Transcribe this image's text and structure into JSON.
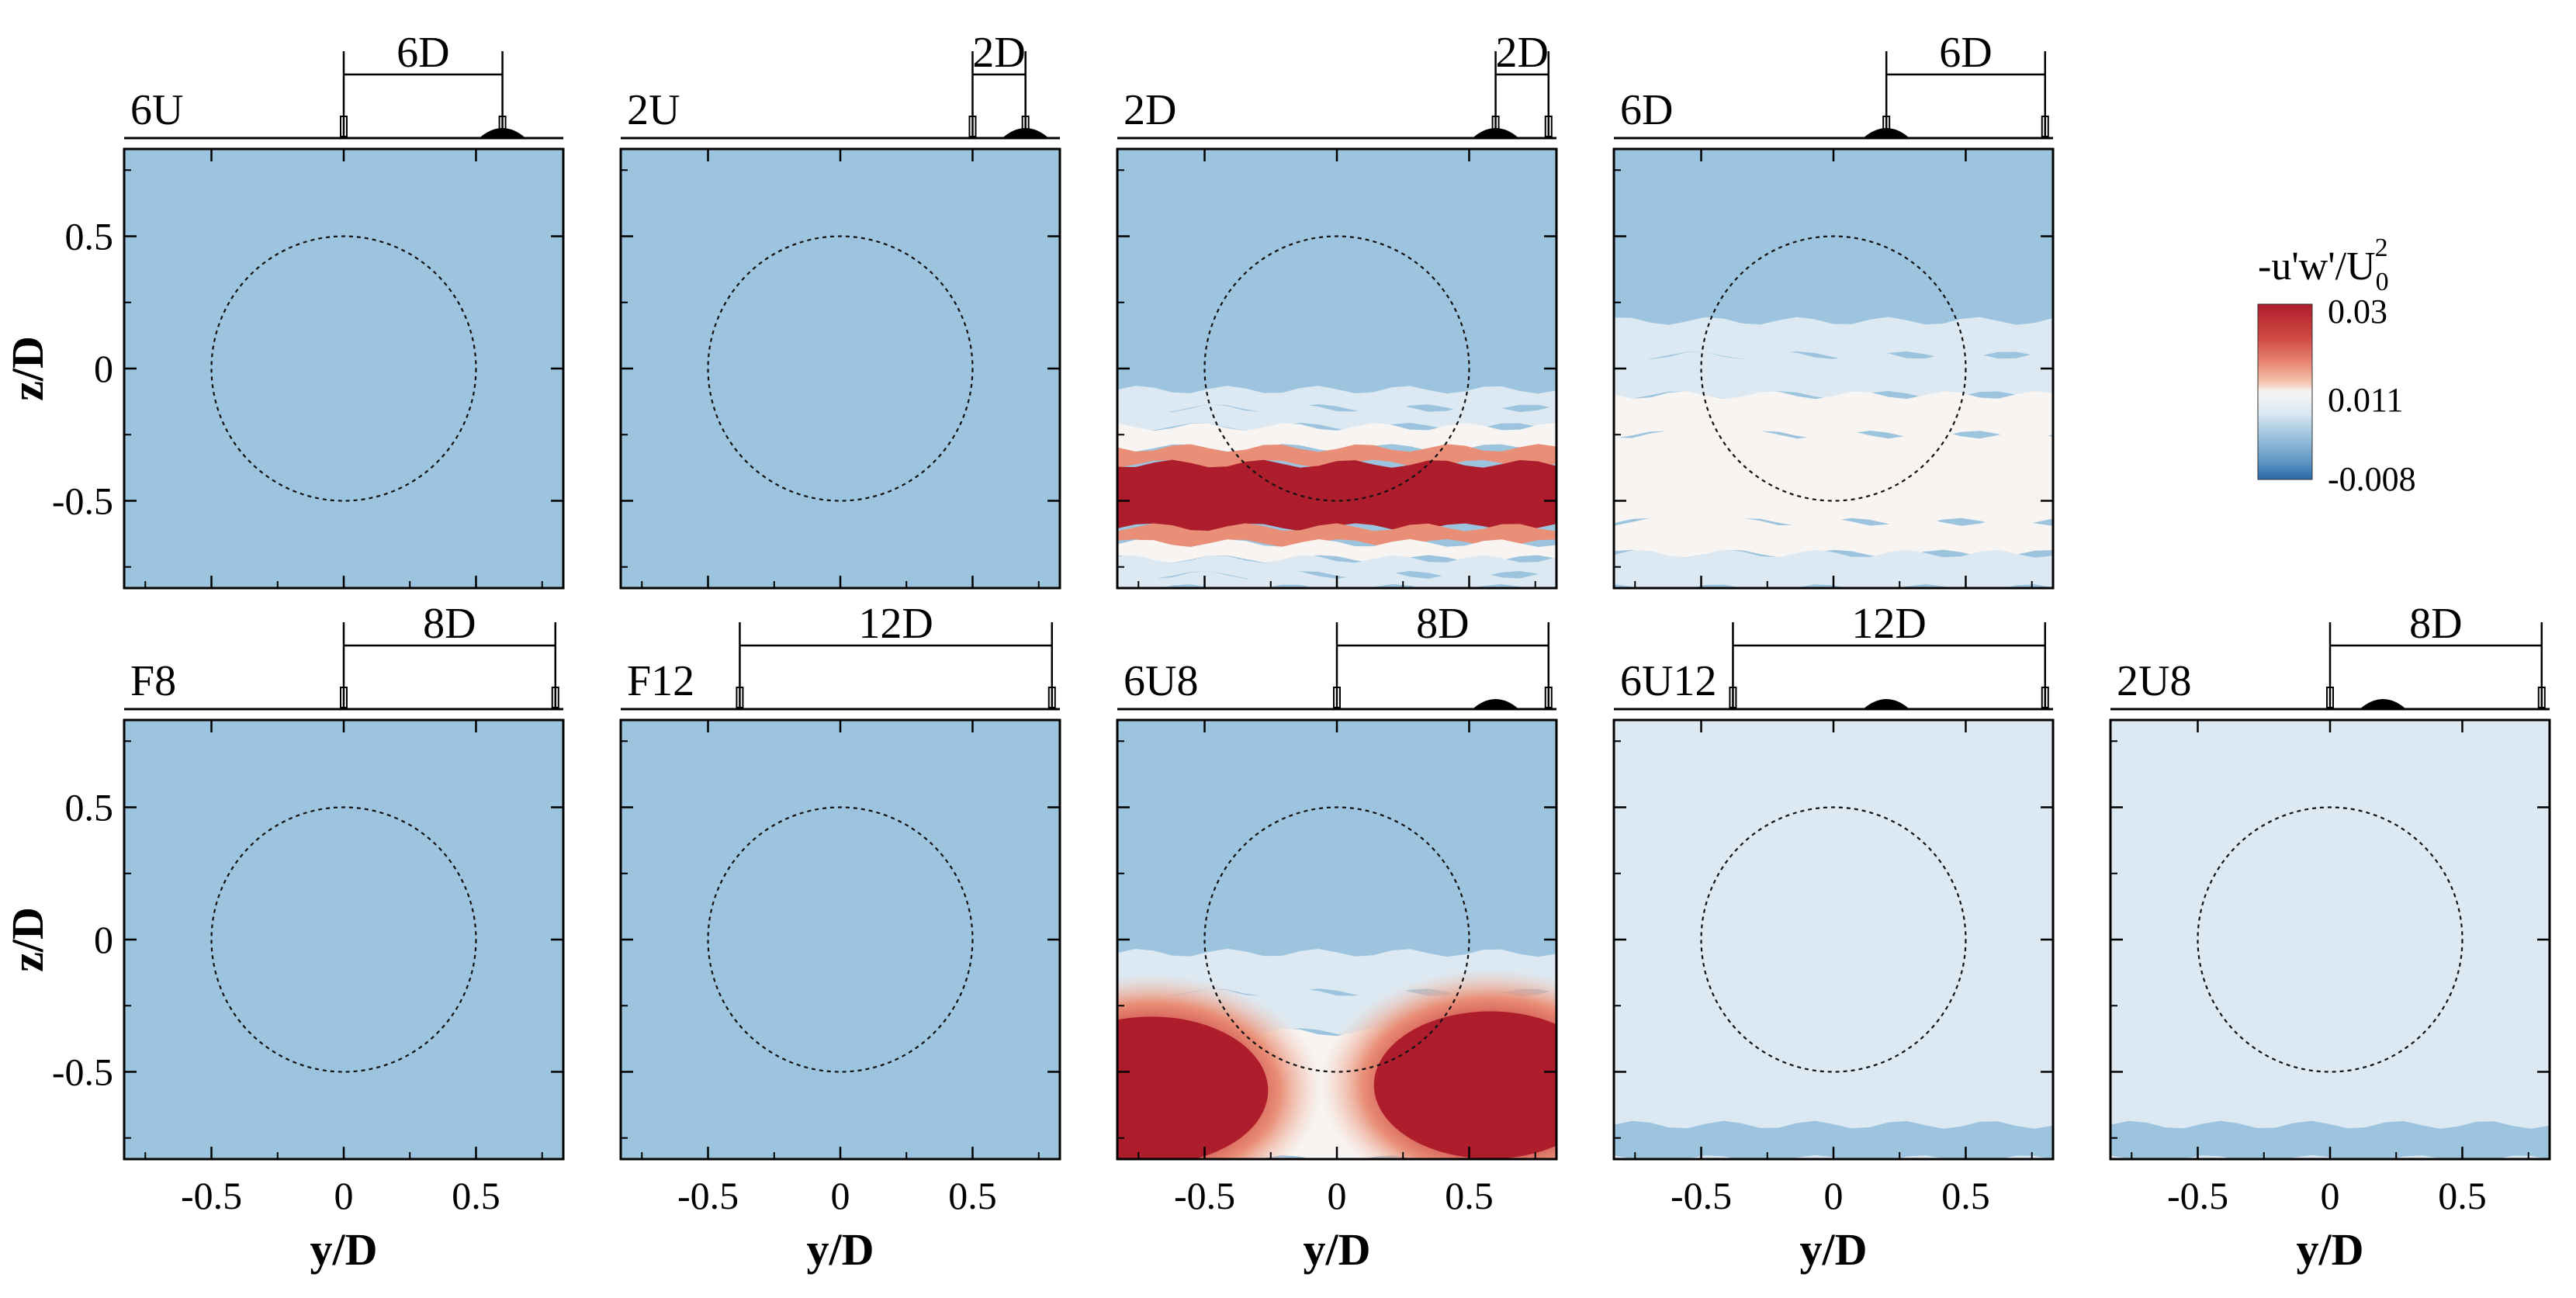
{
  "figure": {
    "colorbar": {
      "title_main": "-u'w'/U",
      "title_sub": "0",
      "title_sup": "2",
      "ticks": [
        "0.03",
        "0.011",
        "-0.008"
      ],
      "tick_values": [
        0.03,
        0.011,
        -0.008
      ],
      "range": [
        -0.008,
        0.03
      ],
      "colors": [
        "#2a6aa8",
        "#5f95c4",
        "#9dc4de",
        "#dce9f2",
        "#f7f4f2",
        "#f4c8b4",
        "#e98f77",
        "#d24b43",
        "#ad1d2c"
      ]
    },
    "axis": {
      "xlabel": "y/D",
      "ylabel": "z/D",
      "xticks": [
        "-0.5",
        "0",
        "0.5"
      ],
      "yticks": [
        "0.5",
        "0",
        "-0.5"
      ]
    }
  },
  "chart_data": [
    {
      "type": "heatmap",
      "panel": "6U",
      "row": 1,
      "col": 1,
      "title": "6U",
      "distance_label": "6D",
      "bracket_y": [
        0.0,
        0.6
      ],
      "hill_y": 0.6,
      "xlabel": "",
      "ylabel": "z/D",
      "xlim": [
        -0.83,
        0.83
      ],
      "ylim": [
        -0.83,
        0.83
      ],
      "rotor_radius": 0.5,
      "background_value": 0.0,
      "bands": [
        {
          "z": [
            -0.83,
            -0.76
          ],
          "value": 0.003
        }
      ]
    },
    {
      "type": "heatmap",
      "panel": "2U",
      "row": 1,
      "col": 2,
      "title": "2U",
      "distance_label": "2D",
      "bracket_y": [
        0.5,
        0.7
      ],
      "hill_y": 0.7,
      "xlabel": "",
      "ylabel": "",
      "xlim": [
        -0.83,
        0.83
      ],
      "ylim": [
        -0.83,
        0.83
      ],
      "rotor_radius": 0.5,
      "background_value": 0.0,
      "bands": [
        {
          "z": [
            -0.83,
            -0.65
          ],
          "value": 0.003
        }
      ]
    },
    {
      "type": "heatmap",
      "panel": "2D",
      "row": 1,
      "col": 3,
      "title": "2D",
      "distance_label": "2D",
      "bracket_y": [
        0.6,
        0.8
      ],
      "hill_y": 0.6,
      "xlabel": "",
      "ylabel": "",
      "xlim": [
        -0.83,
        0.83
      ],
      "ylim": [
        -0.83,
        0.83
      ],
      "rotor_radius": 0.5,
      "background_value": 0.0,
      "bands": [
        {
          "z": [
            -0.15,
            -0.08
          ],
          "value": 0.004
        },
        {
          "z": [
            -0.22,
            -0.15
          ],
          "value": 0.008
        },
        {
          "z": [
            -0.3,
            -0.22
          ],
          "value": 0.013
        },
        {
          "z": [
            -0.36,
            -0.3
          ],
          "value": 0.02
        },
        {
          "z": [
            -0.6,
            -0.36
          ],
          "value": 0.03
        },
        {
          "z": [
            -0.66,
            -0.6
          ],
          "value": 0.02
        },
        {
          "z": [
            -0.72,
            -0.66
          ],
          "value": 0.013
        },
        {
          "z": [
            -0.78,
            -0.72
          ],
          "value": 0.008
        },
        {
          "z": [
            -0.83,
            -0.78
          ],
          "value": 0.004
        }
      ]
    },
    {
      "type": "heatmap",
      "panel": "6D",
      "row": 1,
      "col": 4,
      "title": "6D",
      "distance_label": "6D",
      "bracket_y": [
        0.2,
        0.8
      ],
      "hill_y": 0.2,
      "xlabel": "",
      "ylabel": "",
      "xlim": [
        -0.83,
        0.83
      ],
      "ylim": [
        -0.83,
        0.83
      ],
      "rotor_radius": 0.5,
      "background_value": 0.0,
      "bands": [
        {
          "z": [
            0.18,
            0.3
          ],
          "value": 0.003
        },
        {
          "z": [
            0.05,
            0.18
          ],
          "value": 0.006
        },
        {
          "z": [
            -0.1,
            0.05
          ],
          "value": 0.008
        },
        {
          "z": [
            -0.25,
            -0.1
          ],
          "value": 0.009
        },
        {
          "z": [
            -0.58,
            -0.25
          ],
          "value": 0.011
        },
        {
          "z": [
            -0.7,
            -0.58
          ],
          "value": 0.009
        },
        {
          "z": [
            -0.83,
            -0.7
          ],
          "value": 0.006
        }
      ]
    },
    {
      "type": "heatmap",
      "panel": "F8",
      "row": 2,
      "col": 1,
      "title": "F8",
      "distance_label": "8D",
      "bracket_y": [
        0.0,
        0.8
      ],
      "hill_y": null,
      "xlabel": "y/D",
      "ylabel": "z/D",
      "xlim": [
        -0.83,
        0.83
      ],
      "ylim": [
        -0.83,
        0.83
      ],
      "rotor_radius": 0.5,
      "background_value": 0.003,
      "bands": [
        {
          "z": [
            -0.83,
            -0.3
          ],
          "value": 0.001
        }
      ]
    },
    {
      "type": "heatmap",
      "panel": "F12",
      "row": 2,
      "col": 2,
      "title": "F12",
      "distance_label": "12D",
      "bracket_y": [
        -0.38,
        0.8
      ],
      "hill_y": null,
      "xlabel": "y/D",
      "ylabel": "",
      "xlim": [
        -0.83,
        0.83
      ],
      "ylim": [
        -0.83,
        0.83
      ],
      "rotor_radius": 0.5,
      "background_value": 0.003,
      "bands": [
        {
          "z": [
            -0.83,
            -0.6
          ],
          "value": 0.002
        }
      ]
    },
    {
      "type": "heatmap",
      "panel": "6U8",
      "row": 2,
      "col": 3,
      "title": "6U8",
      "distance_label": "8D",
      "bracket_y": [
        0.0,
        0.8
      ],
      "hill_y": 0.6,
      "xlabel": "y/D",
      "ylabel": "",
      "xlim": [
        -0.83,
        0.83
      ],
      "ylim": [
        -0.83,
        0.83
      ],
      "rotor_radius": 0.5,
      "background_value": 0.003,
      "bands": [
        {
          "z": [
            -0.2,
            -0.05
          ],
          "value": 0.004
        },
        {
          "z": [
            -0.35,
            -0.2
          ],
          "value": 0.007
        },
        {
          "z": [
            -0.83,
            -0.35
          ],
          "value": 0.011
        }
      ],
      "hotspots": [
        {
          "y": -0.7,
          "z": -0.57,
          "value": 0.03
        },
        {
          "y": 0.58,
          "z": -0.55,
          "value": 0.03
        }
      ]
    },
    {
      "type": "heatmap",
      "panel": "6U12",
      "row": 2,
      "col": 4,
      "title": "6U12",
      "distance_label": "12D",
      "bracket_y": [
        -0.38,
        0.8
      ],
      "hill_y": 0.2,
      "xlabel": "y/D",
      "ylabel": "",
      "xlim": [
        -0.83,
        0.83
      ],
      "ylim": [
        -0.83,
        0.83
      ],
      "rotor_radius": 0.5,
      "background_value": 0.004,
      "bands": [
        {
          "z": [
            -0.83,
            -0.7
          ],
          "value": 0.003
        }
      ]
    },
    {
      "type": "heatmap",
      "panel": "2U8",
      "row": 2,
      "col": 5,
      "title": "2U8",
      "distance_label": "8D",
      "bracket_y": [
        0.0,
        0.8
      ],
      "hill_y": 0.2,
      "xlabel": "y/D",
      "ylabel": "",
      "xlim": [
        -0.83,
        0.83
      ],
      "ylim": [
        -0.83,
        0.83
      ],
      "rotor_radius": 0.5,
      "background_value": 0.004,
      "bands": [
        {
          "z": [
            -0.83,
            -0.7
          ],
          "value": 0.003
        }
      ]
    }
  ]
}
